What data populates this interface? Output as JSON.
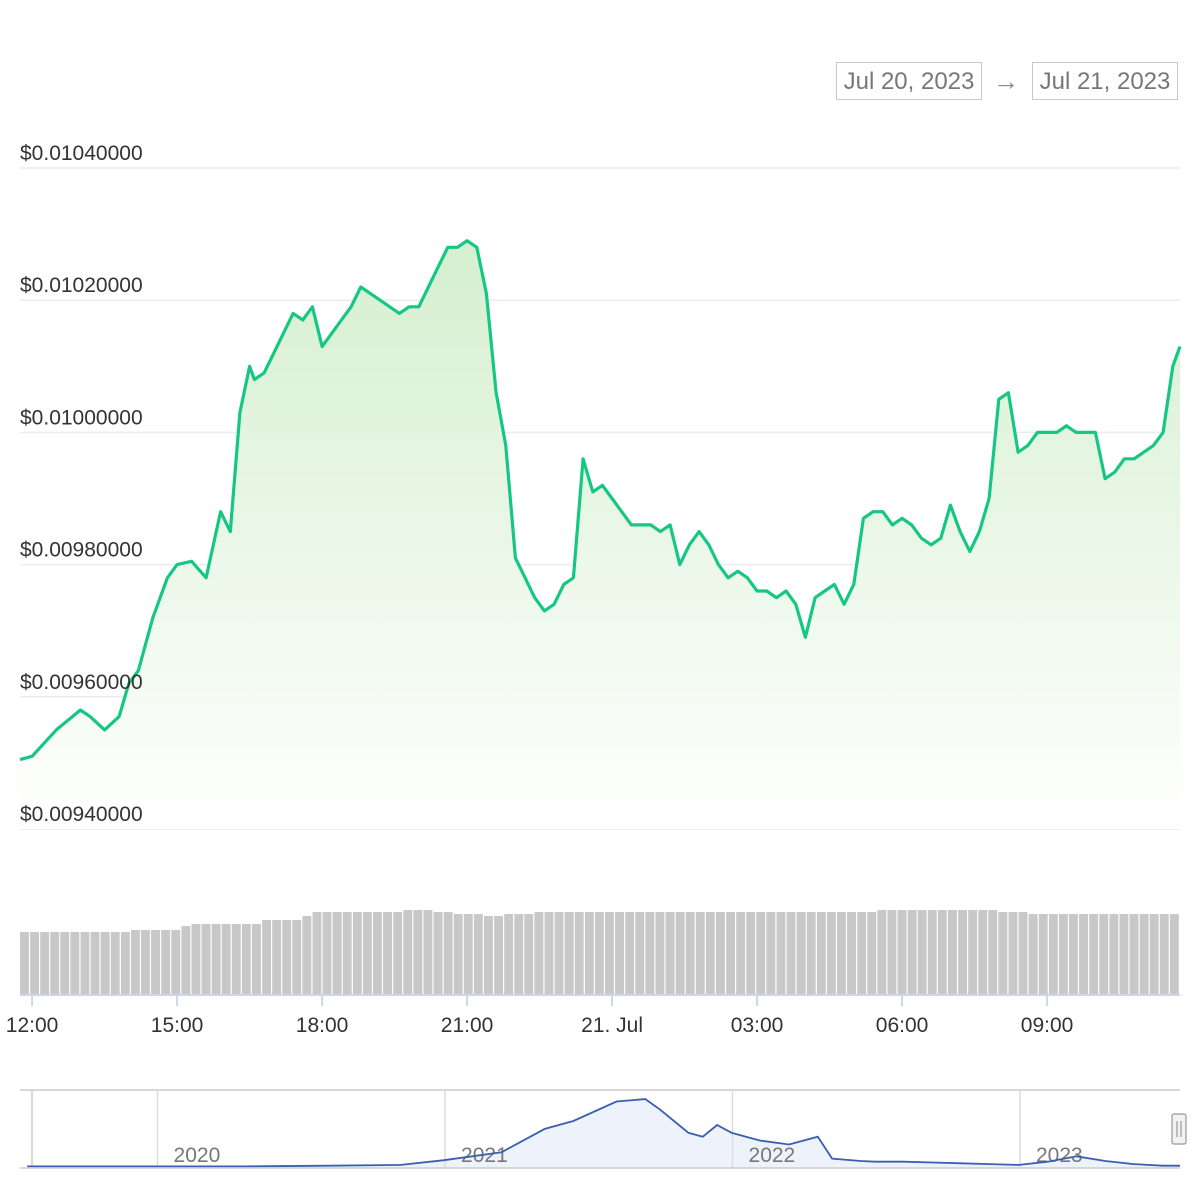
{
  "range_selector": {
    "from": "Jul 20, 2023",
    "arrow": "→",
    "to": "Jul 21, 2023"
  },
  "colors": {
    "line": "#16c784",
    "fill_top": "#d5efcf",
    "grid": "#ececec",
    "volume": "#c8c8c8",
    "navigator": "#3a5fb0"
  },
  "chart_data": [
    {
      "type": "area",
      "title": "",
      "xlabel": "",
      "ylabel": "",
      "currency_prefix": "$",
      "x_ticks": [
        "12:00",
        "15:00",
        "18:00",
        "21:00",
        "21. Jul",
        "03:00",
        "06:00",
        "09:00"
      ],
      "y_ticks": [
        "$0.01040000",
        "$0.01020000",
        "$0.01000000",
        "$0.00980000",
        "$0.00960000",
        "$0.00940000"
      ],
      "y_tick_values": [
        0.0104,
        0.0102,
        0.01,
        0.0098,
        0.0096,
        0.0094
      ],
      "ylim": [
        0.0094,
        0.0104
      ],
      "xlim_hours": [
        11.75,
        35.75
      ],
      "series": [
        {
          "x_hours": [
            11.75,
            12.0,
            12.5,
            13.0,
            13.2,
            13.5,
            13.8,
            14.0,
            14.2,
            14.5,
            14.8,
            15.0,
            15.3,
            15.6,
            15.9,
            16.1,
            16.3,
            16.5,
            16.6,
            16.8,
            17.0,
            17.2,
            17.4,
            17.6,
            17.8,
            18.0,
            18.2,
            18.4,
            18.6,
            18.8,
            19.0,
            19.2,
            19.4,
            19.6,
            19.8,
            20.0,
            20.2,
            20.4,
            20.6,
            20.8,
            21.0,
            21.2,
            21.4,
            21.6,
            21.8,
            22.0,
            22.2,
            22.4,
            22.6,
            22.8,
            23.0,
            23.2,
            23.4,
            23.6,
            23.8,
            24.0,
            24.2,
            24.4,
            24.6,
            24.8,
            25.0,
            25.2,
            25.4,
            25.6,
            25.8,
            26.0,
            26.2,
            26.4,
            26.6,
            26.8,
            27.0,
            27.2,
            27.4,
            27.6,
            27.8,
            28.0,
            28.2,
            28.4,
            28.6,
            28.8,
            29.0,
            29.2,
            29.4,
            29.6,
            29.8,
            30.0,
            30.2,
            30.4,
            30.6,
            30.8,
            31.0,
            31.2,
            31.4,
            31.6,
            31.8,
            32.0,
            32.2,
            32.4,
            32.6,
            32.8,
            33.0,
            33.2,
            33.4,
            33.6,
            33.8,
            34.0,
            34.2,
            34.4,
            34.6,
            34.8,
            35.0,
            35.2,
            35.4,
            35.6,
            35.75
          ],
          "values": [
            0.009505,
            0.00951,
            0.00955,
            0.00958,
            0.00957,
            0.00955,
            0.00957,
            0.00962,
            0.00964,
            0.00972,
            0.00978,
            0.0098,
            0.009805,
            0.00978,
            0.00988,
            0.00985,
            0.01003,
            0.0101,
            0.01008,
            0.01009,
            0.01012,
            0.01015,
            0.01018,
            0.01017,
            0.01019,
            0.01013,
            0.01015,
            0.01017,
            0.01019,
            0.01022,
            0.01021,
            0.0102,
            0.01019,
            0.01018,
            0.01019,
            0.01019,
            0.01022,
            0.01025,
            0.01028,
            0.01028,
            0.01029,
            0.01028,
            0.01021,
            0.01006,
            0.00998,
            0.00981,
            0.00978,
            0.00975,
            0.00973,
            0.00974,
            0.00977,
            0.00978,
            0.00996,
            0.00991,
            0.00992,
            0.0099,
            0.00988,
            0.00986,
            0.00986,
            0.00986,
            0.00985,
            0.00986,
            0.0098,
            0.00983,
            0.00985,
            0.00983,
            0.0098,
            0.00978,
            0.00979,
            0.00978,
            0.00976,
            0.00976,
            0.00975,
            0.00976,
            0.00974,
            0.00969,
            0.00975,
            0.00976,
            0.00977,
            0.00974,
            0.00977,
            0.00987,
            0.00988,
            0.00988,
            0.00986,
            0.00987,
            0.00986,
            0.00984,
            0.00983,
            0.00984,
            0.00989,
            0.00985,
            0.00982,
            0.00985,
            0.0099,
            0.01005,
            0.01006,
            0.00997,
            0.00998,
            0.01,
            0.01,
            0.01,
            0.01001,
            0.01,
            0.01,
            0.01,
            0.00993,
            0.00994,
            0.00996,
            0.00996,
            0.00997,
            0.00998,
            0.01,
            0.0101,
            0.01013
          ]
        }
      ],
      "volume_values": [
        0.31,
        0.31,
        0.31,
        0.31,
        0.31,
        0.31,
        0.31,
        0.31,
        0.31,
        0.31,
        0.31,
        0.32,
        0.32,
        0.32,
        0.32,
        0.32,
        0.34,
        0.35,
        0.35,
        0.35,
        0.35,
        0.35,
        0.35,
        0.35,
        0.37,
        0.37,
        0.37,
        0.37,
        0.39,
        0.41,
        0.41,
        0.41,
        0.41,
        0.41,
        0.41,
        0.41,
        0.41,
        0.41,
        0.42,
        0.42,
        0.42,
        0.41,
        0.41,
        0.4,
        0.4,
        0.4,
        0.39,
        0.39,
        0.4,
        0.4,
        0.4,
        0.41,
        0.41,
        0.41,
        0.41,
        0.41,
        0.41,
        0.41,
        0.41,
        0.41,
        0.41,
        0.41,
        0.41,
        0.41,
        0.41,
        0.41,
        0.41,
        0.41,
        0.41,
        0.41,
        0.41,
        0.41,
        0.41,
        0.41,
        0.41,
        0.41,
        0.41,
        0.41,
        0.41,
        0.41,
        0.41,
        0.41,
        0.41,
        0.41,
        0.41,
        0.42,
        0.42,
        0.42,
        0.42,
        0.42,
        0.42,
        0.42,
        0.42,
        0.42,
        0.42,
        0.42,
        0.42,
        0.41,
        0.41,
        0.41,
        0.4,
        0.4,
        0.4,
        0.4,
        0.4,
        0.4,
        0.4,
        0.4,
        0.4,
        0.4,
        0.4,
        0.4,
        0.4,
        0.4,
        0.4
      ]
    },
    {
      "type": "line",
      "role": "navigator",
      "x_ticks": [
        "2020",
        "2021",
        "2022",
        "2023"
      ],
      "x_years": [
        2019.55,
        2019.8,
        2020.0,
        2020.3,
        2020.6,
        2020.85,
        2021.0,
        2021.2,
        2021.35,
        2021.45,
        2021.6,
        2021.7,
        2021.75,
        2021.8,
        2021.85,
        2021.9,
        2021.95,
        2022.0,
        2022.05,
        2022.1,
        2022.2,
        2022.3,
        2022.35,
        2022.45,
        2022.5,
        2022.6,
        2022.7,
        2022.8,
        2022.9,
        2023.0,
        2023.1,
        2023.2,
        2023.3,
        2023.4,
        2023.5,
        2023.56
      ],
      "values": [
        0.0002,
        0.0002,
        0.0002,
        0.0002,
        0.0003,
        0.0004,
        0.001,
        0.002,
        0.005,
        0.006,
        0.0085,
        0.0088,
        0.0075,
        0.006,
        0.0045,
        0.004,
        0.0055,
        0.0045,
        0.004,
        0.0035,
        0.003,
        0.004,
        0.0012,
        0.0009,
        0.0008,
        0.0008,
        0.0007,
        0.0006,
        0.0005,
        0.0004,
        0.0008,
        0.0015,
        0.0009,
        0.0005,
        0.0003,
        0.0003
      ]
    }
  ]
}
